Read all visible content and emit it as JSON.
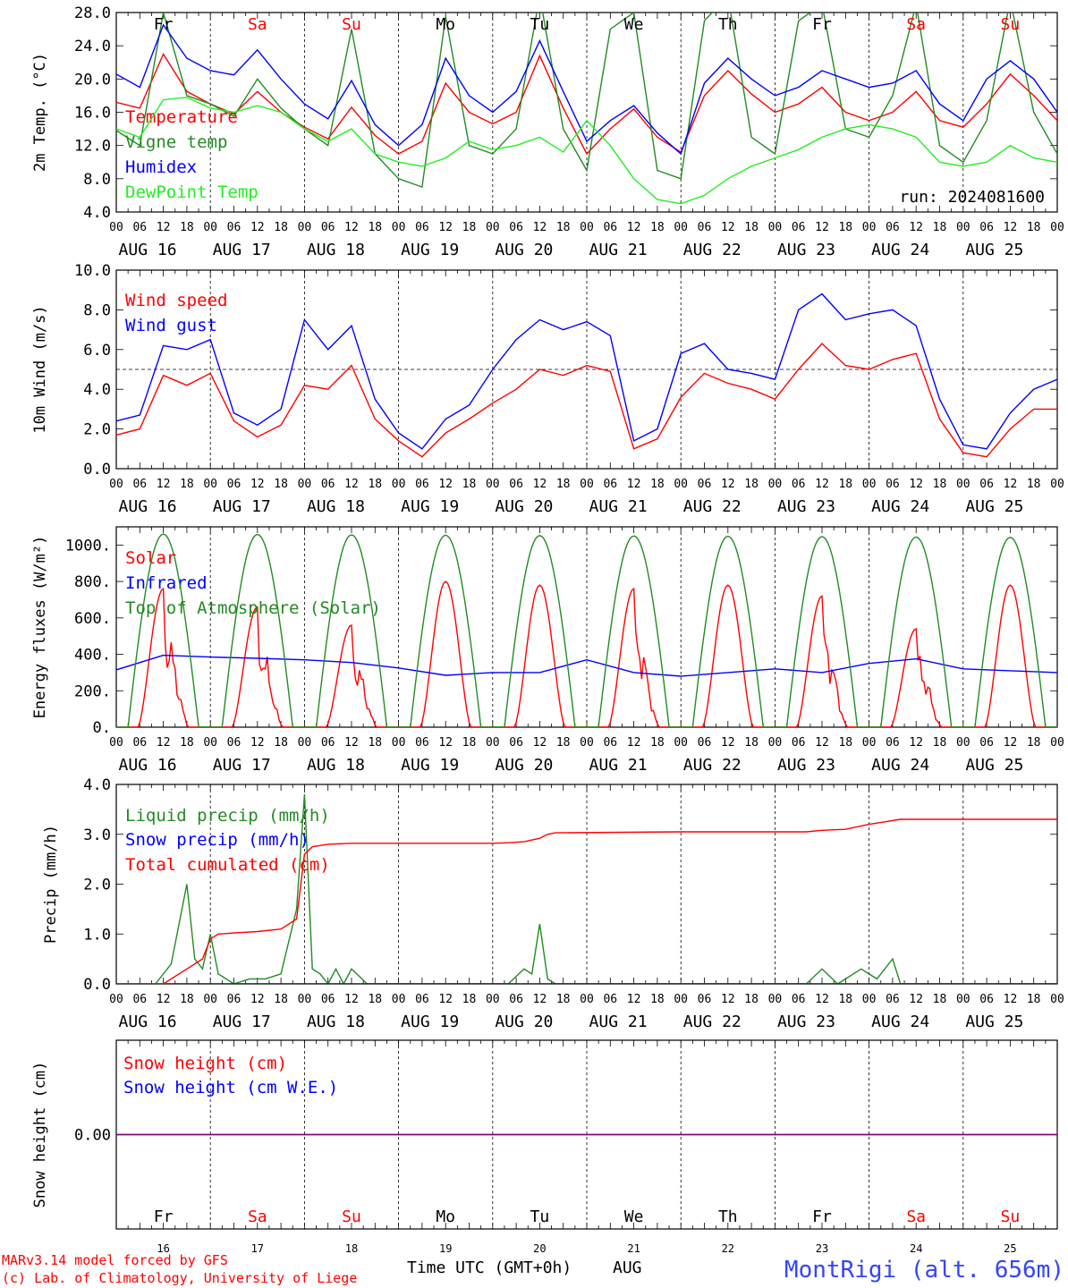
{
  "colors": {
    "red": "#ff0000",
    "darkgreen": "#228b22",
    "blue": "#0000ff",
    "lightgreen": "#22ee22",
    "purple": "#800080",
    "black": "#000000",
    "station": "#3344ff"
  },
  "days": [
    {
      "abbr": "Fr",
      "date": "AUG 16",
      "num": "16",
      "weekend": false
    },
    {
      "abbr": "Sa",
      "date": "AUG 17",
      "num": "17",
      "weekend": true
    },
    {
      "abbr": "Su",
      "date": "AUG 18",
      "num": "18",
      "weekend": true
    },
    {
      "abbr": "Mo",
      "date": "AUG 19",
      "num": "19",
      "weekend": false
    },
    {
      "abbr": "Tu",
      "date": "AUG 20",
      "num": "20",
      "weekend": false
    },
    {
      "abbr": "We",
      "date": "AUG 21",
      "num": "21",
      "weekend": false
    },
    {
      "abbr": "Th",
      "date": "AUG 22",
      "num": "22",
      "weekend": false
    },
    {
      "abbr": "Fr",
      "date": "AUG 23",
      "num": "23",
      "weekend": false
    },
    {
      "abbr": "Sa",
      "date": "AUG 24",
      "num": "24",
      "weekend": true
    },
    {
      "abbr": "Su",
      "date": "AUG 25",
      "num": "25",
      "weekend": true
    }
  ],
  "hour_labels": [
    "00",
    "06",
    "12",
    "18"
  ],
  "final_hour_label": "00",
  "footer": {
    "model": "MARv3.14 model forced by GFS",
    "copyright": "(c) Lab. of Climatology, University of Liege",
    "xlabel": "Time UTC (GMT+0h)",
    "month": "AUG",
    "station": "MontRigi (alt. 656m)"
  },
  "chart_data": [
    {
      "type": "line",
      "ylabel": "2m Temp. (°C)",
      "ylim": [
        4,
        28
      ],
      "yticks": [
        "4.0",
        "8.0",
        "12.0",
        "16.0",
        "20.0",
        "24.0",
        "28.0"
      ],
      "annotation": "run: 2024081600",
      "x_unit": "hours since AUG 16 00 UTC",
      "series": [
        {
          "name": "Temperature",
          "color": "red",
          "x": [
            0,
            6,
            12,
            18,
            24,
            30,
            36,
            42,
            48,
            54,
            60,
            66,
            72,
            78,
            84,
            90,
            96,
            102,
            108,
            114,
            120,
            126,
            132,
            138,
            144,
            150,
            156,
            162,
            168,
            174,
            180,
            186,
            192,
            198,
            204,
            210,
            216,
            222,
            228,
            234,
            240
          ],
          "values": [
            17.2,
            16.5,
            23,
            18.5,
            17,
            15.8,
            18.5,
            16,
            14.2,
            12.8,
            16.6,
            13.2,
            11,
            12.5,
            19.5,
            16,
            14.6,
            16,
            22.8,
            16.5,
            11,
            14,
            16.4,
            13,
            11.2,
            18,
            21,
            18.2,
            16,
            17,
            19,
            16,
            15,
            16,
            18.5,
            15,
            14.2,
            17,
            20.6,
            18,
            15
          ]
        },
        {
          "name": "Vigne temp",
          "color": "darkgreen",
          "x": [
            0,
            6,
            12,
            18,
            24,
            30,
            36,
            42,
            48,
            54,
            60,
            66,
            72,
            78,
            84,
            90,
            96,
            102,
            108,
            114,
            120,
            126,
            132,
            138,
            144,
            150,
            156,
            162,
            168,
            174,
            180,
            186,
            192,
            198,
            204,
            210,
            216,
            222,
            228,
            234,
            240
          ],
          "values": [
            13.8,
            12,
            28,
            18,
            17,
            15.5,
            20,
            16.5,
            14,
            12,
            26,
            11,
            8,
            7,
            27.5,
            12,
            11,
            14,
            30,
            14,
            9,
            26,
            28,
            9,
            8,
            27,
            30,
            13,
            11,
            27,
            29,
            14,
            13,
            18,
            29,
            12,
            10,
            15,
            29.5,
            16,
            11
          ]
        },
        {
          "name": "Humidex",
          "color": "blue",
          "x": [
            0,
            6,
            12,
            18,
            24,
            30,
            36,
            42,
            48,
            54,
            60,
            66,
            72,
            78,
            84,
            90,
            96,
            102,
            108,
            114,
            120,
            126,
            132,
            138,
            144,
            150,
            156,
            162,
            168,
            174,
            180,
            186,
            192,
            198,
            204,
            210,
            216,
            222,
            228,
            234,
            240
          ],
          "values": [
            20.6,
            19,
            26.5,
            22.5,
            21,
            20.5,
            23.5,
            20,
            17,
            15.2,
            19.8,
            14.5,
            12,
            14.5,
            22.5,
            18,
            16,
            18.5,
            24.6,
            18.5,
            12.5,
            15,
            16.8,
            13.5,
            11,
            19.5,
            22.5,
            20,
            18,
            19,
            21,
            20,
            19,
            19.5,
            21,
            17,
            15,
            20,
            22.2,
            20,
            16
          ]
        },
        {
          "name": "DewPoint Temp",
          "color": "lightgreen",
          "x": [
            0,
            6,
            12,
            18,
            24,
            30,
            36,
            42,
            48,
            54,
            60,
            66,
            72,
            78,
            84,
            90,
            96,
            102,
            108,
            114,
            120,
            126,
            132,
            138,
            144,
            150,
            156,
            162,
            168,
            174,
            180,
            186,
            192,
            198,
            204,
            210,
            216,
            222,
            228,
            234,
            240
          ],
          "values": [
            14,
            13,
            17.5,
            17.8,
            16.5,
            16,
            16.8,
            16,
            14,
            12.5,
            14,
            11,
            10,
            9.5,
            10.5,
            12.5,
            11.5,
            12,
            13,
            11.2,
            15,
            12,
            8,
            5.5,
            5,
            6,
            8,
            9.5,
            10.5,
            11.5,
            13,
            14,
            14.5,
            14,
            13,
            10,
            9.5,
            10,
            12,
            10.5,
            10
          ]
        }
      ]
    },
    {
      "type": "line",
      "ylabel": "10m Wind (m/s)",
      "ylim": [
        0,
        10
      ],
      "yticks": [
        "0.0",
        "2.0",
        "4.0",
        "6.0",
        "8.0",
        "10.0"
      ],
      "reference_line": 5,
      "x_unit": "hours since AUG 16 00 UTC",
      "series": [
        {
          "name": "Wind speed",
          "color": "red",
          "x": [
            0,
            6,
            12,
            18,
            24,
            30,
            36,
            42,
            48,
            54,
            60,
            66,
            72,
            78,
            84,
            90,
            96,
            102,
            108,
            114,
            120,
            126,
            132,
            138,
            144,
            150,
            156,
            162,
            168,
            174,
            180,
            186,
            192,
            198,
            204,
            210,
            216,
            222,
            228,
            234,
            240
          ],
          "values": [
            1.7,
            2,
            4.7,
            4.2,
            4.8,
            2.4,
            1.6,
            2.2,
            4.2,
            4.0,
            5.2,
            2.5,
            1.4,
            0.6,
            1.8,
            2.5,
            3.3,
            4.0,
            5.0,
            4.7,
            5.2,
            4.9,
            1.0,
            1.5,
            3.6,
            4.8,
            4.3,
            4.0,
            3.5,
            5.0,
            6.3,
            5.2,
            5.0,
            5.5,
            5.8,
            2.5,
            0.8,
            0.6,
            2.0,
            3.0,
            3.0
          ]
        },
        {
          "name": "Wind gust",
          "color": "blue",
          "x": [
            0,
            6,
            12,
            18,
            24,
            30,
            36,
            42,
            48,
            54,
            60,
            66,
            72,
            78,
            84,
            90,
            96,
            102,
            108,
            114,
            120,
            126,
            132,
            138,
            144,
            150,
            156,
            162,
            168,
            174,
            180,
            186,
            192,
            198,
            204,
            210,
            216,
            222,
            228,
            234,
            240
          ],
          "values": [
            2.4,
            2.7,
            6.2,
            6.0,
            6.5,
            2.8,
            2.2,
            3.0,
            7.5,
            6.0,
            7.2,
            3.5,
            1.8,
            1.0,
            2.5,
            3.2,
            5.0,
            6.5,
            7.5,
            7.0,
            7.4,
            6.7,
            1.4,
            2.0,
            5.8,
            6.3,
            5.0,
            4.8,
            4.5,
            8.0,
            8.8,
            7.5,
            7.8,
            8.0,
            7.2,
            3.5,
            1.2,
            1.0,
            2.8,
            4.0,
            4.5
          ]
        }
      ]
    },
    {
      "type": "line",
      "ylabel": "Energy fluxes (W/m²)",
      "ylim": [
        0,
        1100
      ],
      "yticks": [
        "0.",
        "200.",
        "400.",
        "600.",
        "800.",
        "1000."
      ],
      "x_unit": "hours since AUG 16 00 UTC",
      "series": [
        {
          "name": "Solar",
          "color": "red",
          "peaks": [
            760,
            660,
            560,
            800,
            780,
            760,
            780,
            720,
            540,
            780
          ],
          "spiky": [
            true,
            true,
            true,
            false,
            false,
            true,
            false,
            true,
            true,
            false
          ]
        },
        {
          "name": "Infrared",
          "color": "blue",
          "x": [
            0,
            12,
            24,
            36,
            48,
            60,
            72,
            84,
            96,
            108,
            120,
            132,
            144,
            156,
            168,
            180,
            192,
            204,
            216,
            228,
            240
          ],
          "values": [
            315,
            395,
            385,
            378,
            370,
            355,
            325,
            285,
            300,
            300,
            370,
            300,
            280,
            300,
            320,
            300,
            350,
            375,
            320,
            310,
            300
          ]
        },
        {
          "name": "Top of Atmosphere (Solar)",
          "color": "darkgreen",
          "peaks": [
            1060,
            1058,
            1056,
            1054,
            1052,
            1050,
            1048,
            1046,
            1044,
            1042
          ]
        }
      ]
    },
    {
      "type": "line",
      "ylabel": "Precip (mm/h)",
      "ylim": [
        0,
        4
      ],
      "yticks": [
        "0.0",
        "1.0",
        "2.0",
        "3.0",
        "4.0"
      ],
      "x_unit": "hours since AUG 16 00 UTC",
      "series": [
        {
          "name": "Liquid precip (mm/h)",
          "color": "darkgreen",
          "x": [
            0,
            10,
            14,
            18,
            20,
            22,
            24,
            26,
            28,
            30,
            34,
            38,
            42,
            46,
            48,
            50,
            52,
            54,
            56,
            58,
            60,
            64,
            68,
            72,
            100,
            104,
            106,
            108,
            110,
            112,
            116,
            176,
            180,
            184,
            190,
            194,
            198,
            200,
            240
          ],
          "values": [
            0,
            0,
            0.4,
            2.0,
            0.5,
            0.3,
            1.0,
            0.2,
            0.1,
            0,
            0.1,
            0.1,
            0.2,
            1.5,
            3.8,
            0.3,
            0.2,
            0,
            0.3,
            0,
            0.3,
            0,
            0,
            0,
            0,
            0.3,
            0.2,
            1.2,
            0.1,
            0,
            0,
            0,
            0.3,
            0,
            0.3,
            0.1,
            0.5,
            0,
            0
          ]
        },
        {
          "name": "Snow precip (mm/h)",
          "color": "blue",
          "x": [
            0,
            240
          ],
          "values": [
            0,
            0
          ]
        },
        {
          "name": "Total cumulated (cm)",
          "color": "red",
          "x": [
            0,
            12,
            18,
            22,
            24,
            26,
            30,
            36,
            42,
            46,
            48,
            50,
            54,
            60,
            72,
            96,
            100,
            104,
            108,
            110,
            112,
            144,
            176,
            180,
            186,
            192,
            196,
            200,
            240
          ],
          "values": [
            0,
            0,
            0.3,
            0.5,
            0.9,
            1.0,
            1.02,
            1.05,
            1.1,
            1.3,
            2.6,
            2.75,
            2.8,
            2.82,
            2.82,
            2.82,
            2.83,
            2.85,
            2.92,
            3.0,
            3.03,
            3.05,
            3.05,
            3.08,
            3.1,
            3.2,
            3.25,
            3.3,
            3.3
          ]
        }
      ]
    },
    {
      "type": "line",
      "ylabel": "Snow height (cm)",
      "ylim": [
        -1,
        1
      ],
      "yticks": [
        "0.00"
      ],
      "x_unit": "hours since AUG 16 00 UTC",
      "series": [
        {
          "name": "Snow height (cm)",
          "color": "red",
          "x": [
            0,
            240
          ],
          "values": [
            0,
            0
          ]
        },
        {
          "name": "Snow height (cm W.E.)",
          "color": "blue",
          "x": [
            0,
            240
          ],
          "values": [
            0,
            0
          ]
        }
      ]
    }
  ]
}
